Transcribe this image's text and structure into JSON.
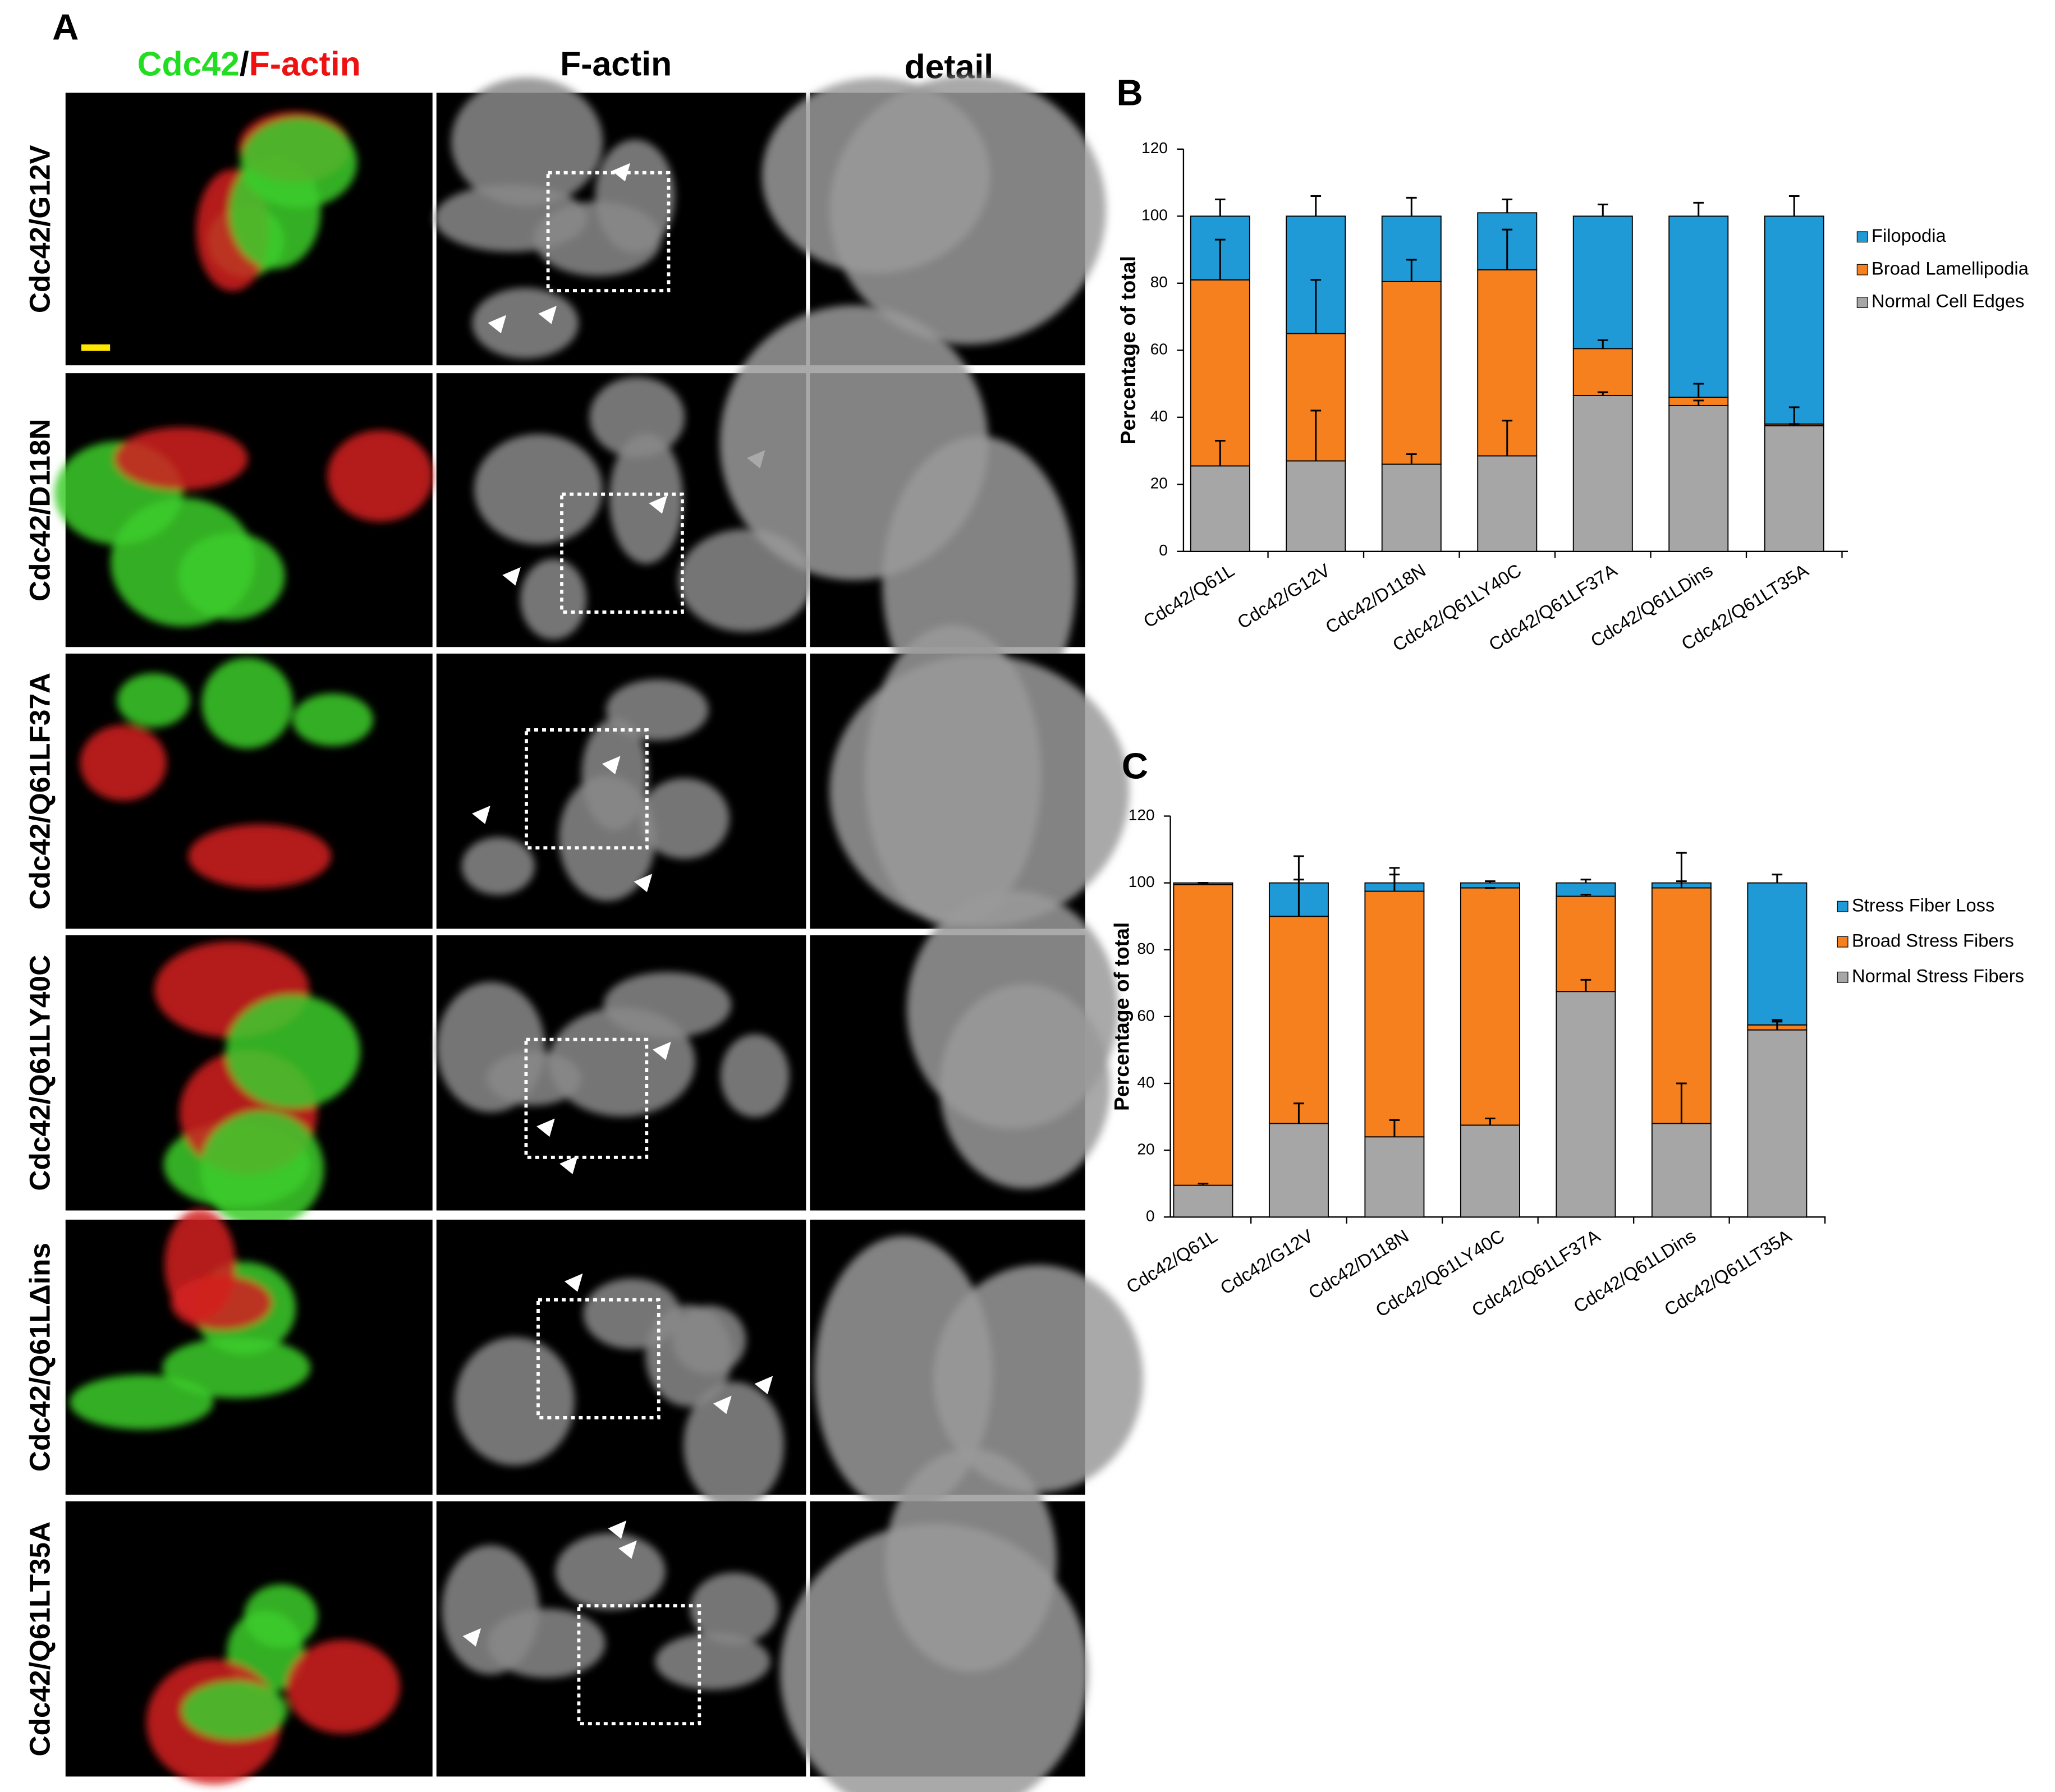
{
  "panel_a": {
    "label": "A",
    "merge_header": [
      "Cdc42",
      "/",
      "F-actin"
    ],
    "headers": [
      "F-actin",
      "detail"
    ],
    "rows": [
      "Cdc42/G12V",
      "Cdc42/D118N",
      "Cdc42/Q61LF37A",
      "Cdc42/Q61LY40C",
      "Cdc42/Q61LΔins",
      "Cdc42/Q61LT35A"
    ]
  },
  "chart_data": [
    {
      "type": "bar",
      "stacked": true,
      "panel_label": "B",
      "ylabel": "Percentage of total",
      "categories": [
        "Cdc42/Q61L",
        "Cdc42/G12V",
        "Cdc42/D118N",
        "Cdc42/Q61LY40C",
        "Cdc42/Q61LF37A",
        "Cdc42/Q61LDins",
        "Cdc42/Q61LT35A"
      ],
      "series": [
        {
          "name": "Normal Cell Edges",
          "color": "#a6a6a6",
          "values": [
            25.5,
            27,
            26,
            28.5,
            46.5,
            43.5,
            37.5
          ],
          "errors": [
            7.5,
            15,
            3,
            10.5,
            1,
            1.5,
            5.5
          ]
        },
        {
          "name": "Broad Lamellipodia",
          "color": "#f7801e",
          "values": [
            55.5,
            38,
            54.5,
            55.5,
            14,
            2.5,
            0.5
          ],
          "errors": [
            12,
            16,
            6.5,
            12,
            2.5,
            4,
            0
          ]
        },
        {
          "name": "Filopodia",
          "color": "#1f9ad6",
          "values": [
            19,
            35,
            19.5,
            17,
            39.5,
            54,
            62
          ],
          "errors": [
            5,
            6,
            5.5,
            4,
            3.5,
            4,
            6
          ]
        }
      ],
      "ylim": [
        0,
        120
      ],
      "yticks": [
        0,
        20,
        40,
        60,
        80,
        100,
        120
      ],
      "grid": false
    },
    {
      "type": "bar",
      "stacked": true,
      "panel_label": "C",
      "ylabel": "Percentage of total",
      "categories": [
        "Cdc42/Q61L",
        "Cdc42/G12V",
        "Cdc42/D118N",
        "Cdc42/Q61LY40C",
        "Cdc42/Q61LF37A",
        "Cdc42/Q61LDins",
        "Cdc42/Q61LT35A"
      ],
      "series": [
        {
          "name": "Normal Stress Fibers",
          "color": "#a6a6a6",
          "values": [
            9.5,
            28,
            24,
            27.5,
            67.5,
            28,
            56
          ],
          "errors": [
            0.5,
            6,
            5,
            2,
            3.5,
            12,
            3
          ]
        },
        {
          "name": "Broad Stress Fibers",
          "color": "#f7801e",
          "values": [
            90,
            62,
            73.5,
            71,
            28.5,
            70.5,
            1.5
          ],
          "errors": [
            0.5,
            11,
            5,
            0,
            0.5,
            2,
            1
          ]
        },
        {
          "name": "Stress Fiber Loss",
          "color": "#1f9ad6",
          "values": [
            0.5,
            10,
            2.5,
            1.5,
            4,
            1.5,
            42.5
          ],
          "errors": [
            0,
            8,
            4.5,
            0.5,
            1,
            9,
            2.5
          ]
        }
      ],
      "ylim": [
        0,
        120
      ],
      "yticks": [
        0,
        20,
        40,
        60,
        80,
        100,
        120
      ],
      "grid": false
    }
  ]
}
